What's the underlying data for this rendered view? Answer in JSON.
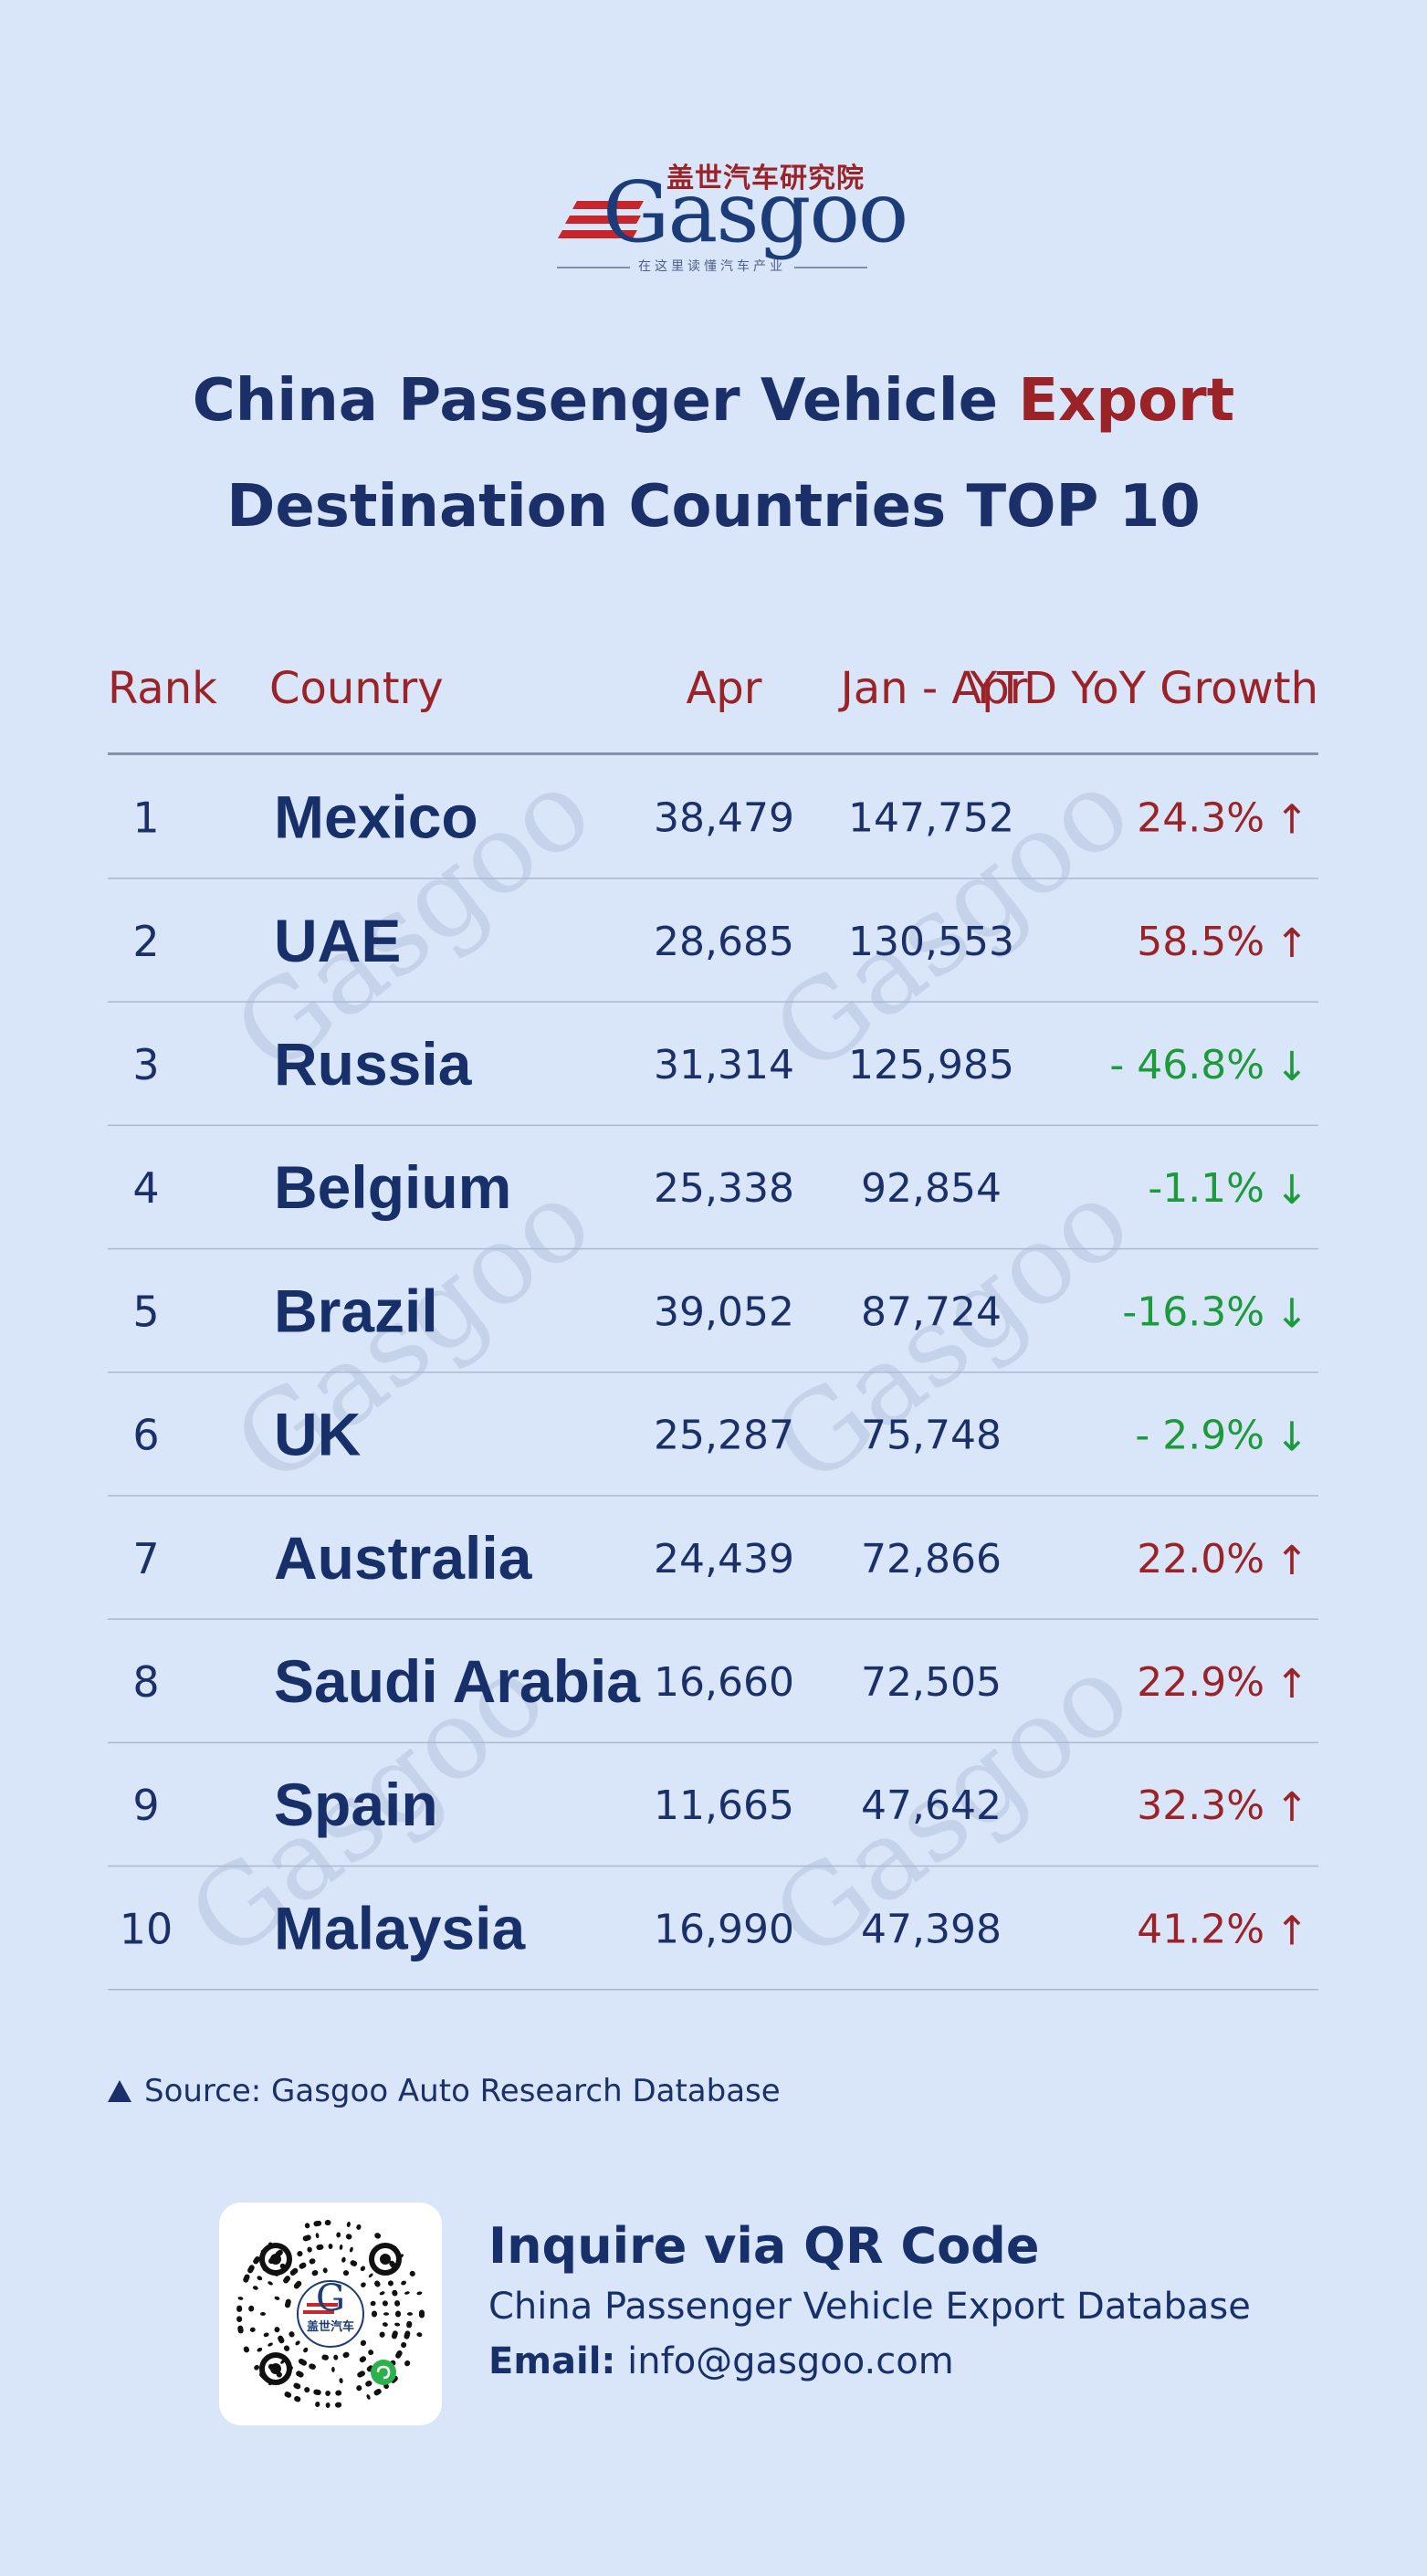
{
  "logo": {
    "chinese": "盖世汽车研究院",
    "wordmark": "Gasgoo",
    "tagline": "在这里读懂汽车产业"
  },
  "title": {
    "line1_pre": "China Passenger Vehicle ",
    "line1_accent": "Export",
    "line2": "Destination Countries TOP 10"
  },
  "colors": {
    "background": "#d9e6f9",
    "navy": "#1b3068",
    "red": "#9b2328",
    "green": "#1d9a3c"
  },
  "chart_data": {
    "type": "table",
    "columns": [
      "Rank",
      "Country",
      "Apr",
      "Jan - Apr",
      "YTD YoY Growth"
    ],
    "rows": [
      {
        "rank": "1",
        "country": "Mexico",
        "apr": "38,479",
        "jan_apr": "147,752",
        "growth": "24.3%",
        "direction": "up",
        "arrow": "↑"
      },
      {
        "rank": "2",
        "country": "UAE",
        "apr": "28,685",
        "jan_apr": "130,553",
        "growth": "58.5%",
        "direction": "up",
        "arrow": "↑"
      },
      {
        "rank": "3",
        "country": "Russia",
        "apr": "31,314",
        "jan_apr": "125,985",
        "growth": "- 46.8%",
        "direction": "down",
        "arrow": "↓"
      },
      {
        "rank": "4",
        "country": "Belgium",
        "apr": "25,338",
        "jan_apr": "92,854",
        "growth": "-1.1%",
        "direction": "down",
        "arrow": "↓"
      },
      {
        "rank": "5",
        "country": "Brazil",
        "apr": "39,052",
        "jan_apr": "87,724",
        "growth": "-16.3%",
        "direction": "down",
        "arrow": "↓"
      },
      {
        "rank": "6",
        "country": "UK",
        "apr": "25,287",
        "jan_apr": "75,748",
        "growth": "- 2.9%",
        "direction": "down",
        "arrow": "↓"
      },
      {
        "rank": "7",
        "country": "Australia",
        "apr": "24,439",
        "jan_apr": "72,866",
        "growth": "22.0%",
        "direction": "up",
        "arrow": "↑"
      },
      {
        "rank": "8",
        "country": "Saudi Arabia",
        "apr": "16,660",
        "jan_apr": "72,505",
        "growth": "22.9%",
        "direction": "up",
        "arrow": "↑"
      },
      {
        "rank": "9",
        "country": "Spain",
        "apr": "11,665",
        "jan_apr": "47,642",
        "growth": "32.3%",
        "direction": "up",
        "arrow": "↑"
      },
      {
        "rank": "10",
        "country": "Malaysia",
        "apr": "16,990",
        "jan_apr": "47,398",
        "growth": "41.2%",
        "direction": "up",
        "arrow": "↑"
      }
    ]
  },
  "source": "Source: Gasgoo Auto Research Database",
  "contact": {
    "title": "Inquire via QR Code",
    "subtitle": "China Passenger Vehicle Export Database",
    "email_label": "Email:",
    "email": "info@gasgoo.com"
  },
  "qr": {
    "center_label": "盖世汽车",
    "icon": "wechat-mini-program-icon"
  }
}
